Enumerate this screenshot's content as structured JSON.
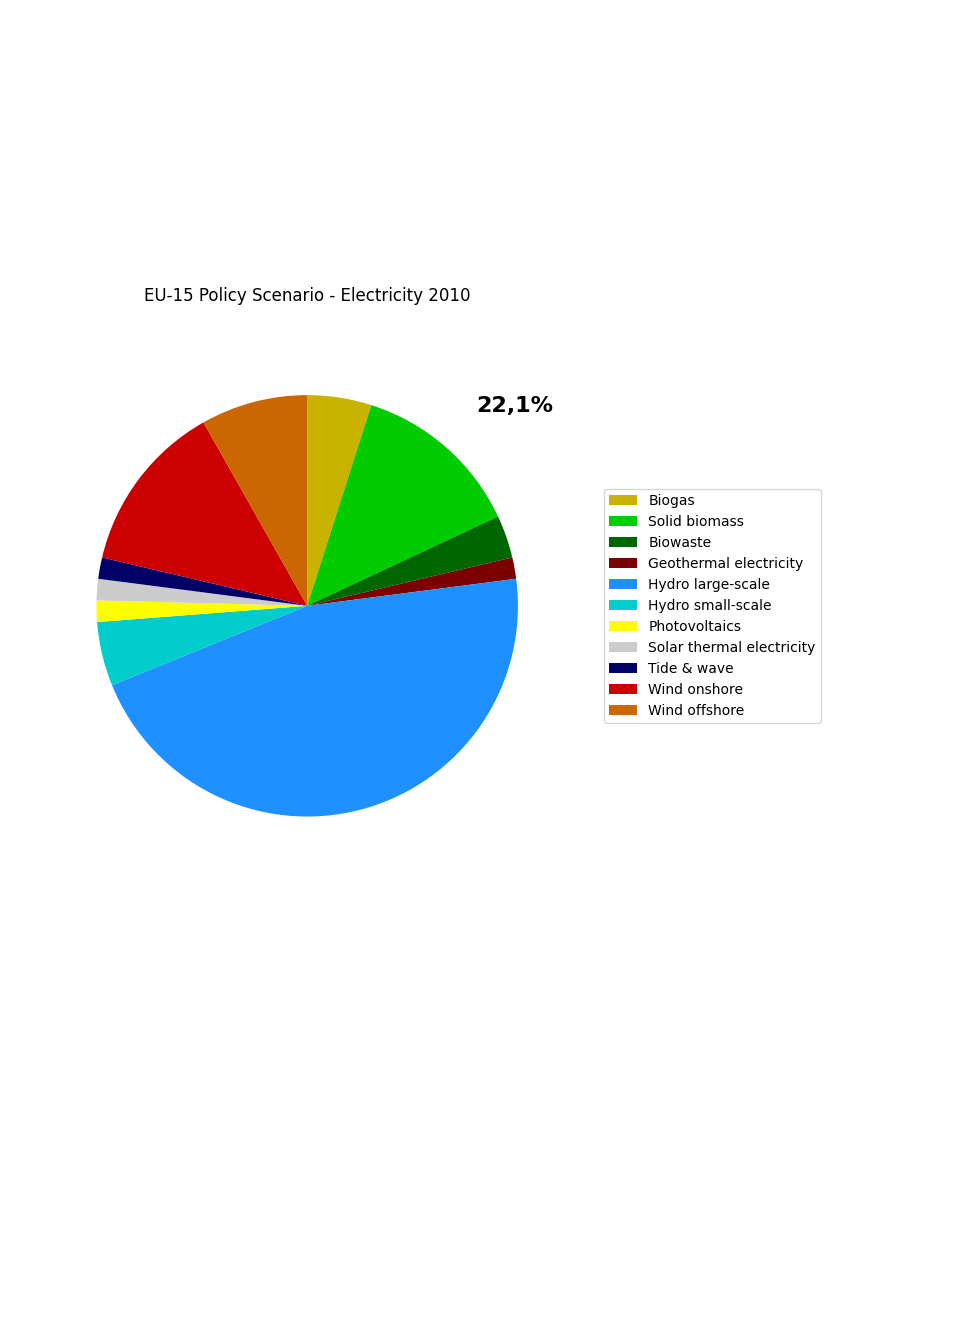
{
  "chart_data": {
    "type": "pie",
    "title": "EU-15 Policy Scenario - Electricity 2010",
    "categories": [
      "Biogas",
      "Solid biomass",
      "Biowaste",
      "Geothermal electricity",
      "Hydro large-scale",
      "Hydro small-scale",
      "Photovoltaics",
      "Solar thermal electricity",
      "Tide & wave",
      "Wind onshore",
      "Wind offshore"
    ],
    "values": [
      3,
      8,
      2,
      1,
      28,
      3,
      1,
      1,
      1,
      8,
      5
    ],
    "colors": [
      "#c8b400",
      "#00cc00",
      "#006600",
      "#7b0000",
      "#1e90ff",
      "#00cccc",
      "#ffff00",
      "#cccccc",
      "#000066",
      "#cc0000",
      "#cc6600"
    ],
    "annotation": "22,1%",
    "legend": "center left"
  }
}
